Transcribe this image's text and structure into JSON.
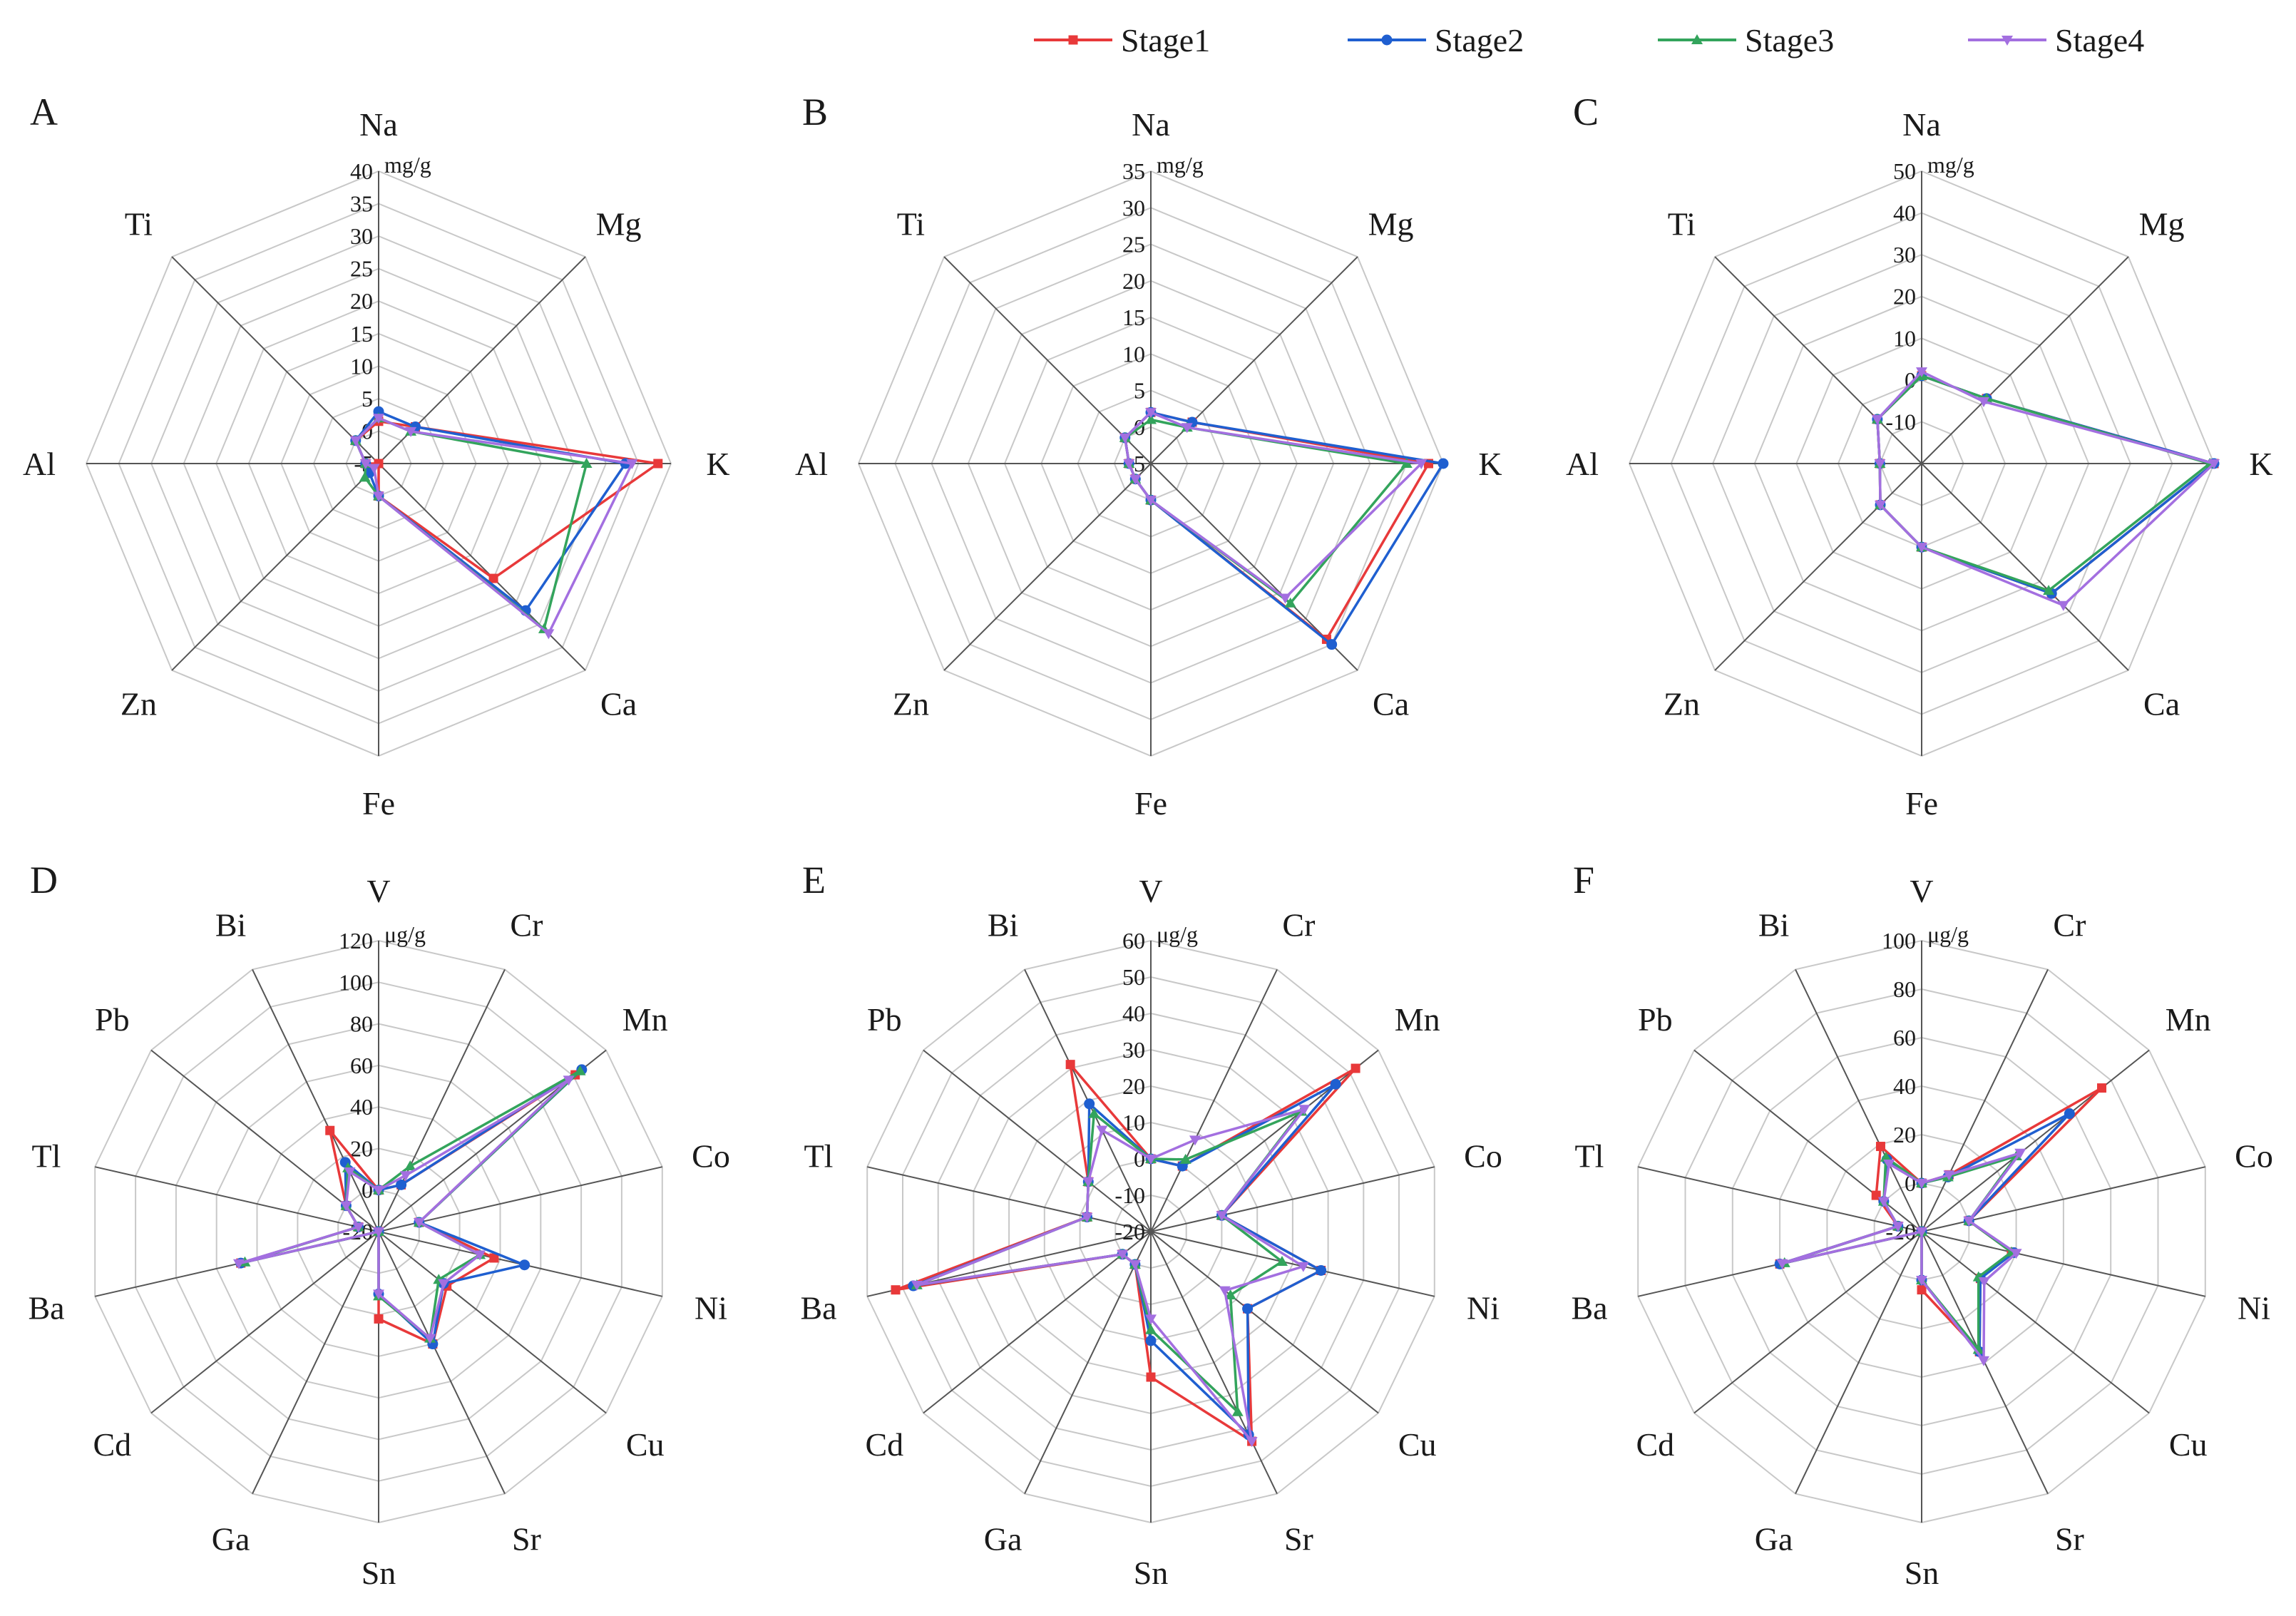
{
  "figure": {
    "legend": [
      {
        "name": "Stage1",
        "color": "#e8393a",
        "marker": "square"
      },
      {
        "name": "Stage2",
        "color": "#1f5fd0",
        "marker": "circle"
      },
      {
        "name": "Stage3",
        "color": "#33a45c",
        "marker": "triangle-up"
      },
      {
        "name": "Stage4",
        "color": "#a36fe0",
        "marker": "triangle-down"
      }
    ]
  },
  "chart_data": [
    {
      "panel": "A",
      "type": "radar",
      "unit": "mg/g",
      "categories": [
        "Na",
        "Mg",
        "K",
        "Ca",
        "Fe",
        "Zn",
        "Al",
        "Ti"
      ],
      "range": [
        -5,
        40
      ],
      "ticks": [
        40,
        35,
        30,
        25,
        20,
        15,
        10,
        5,
        0,
        -5
      ],
      "series": [
        {
          "name": "Stage1",
          "values": [
            1.5,
            3,
            38,
            20,
            0,
            -5,
            -3,
            0
          ]
        },
        {
          "name": "Stage2",
          "values": [
            3,
            3,
            33,
            27,
            0,
            -3,
            -3,
            0
          ]
        },
        {
          "name": "Stage3",
          "values": [
            2,
            2,
            27,
            31,
            0,
            -2,
            -3,
            0
          ]
        },
        {
          "name": "Stage4",
          "values": [
            2,
            2,
            34,
            32,
            0,
            -4,
            -3,
            0
          ]
        }
      ]
    },
    {
      "panel": "B",
      "type": "radar",
      "unit": "mg/g",
      "categories": [
        "Na",
        "Mg",
        "K",
        "Ca",
        "Fe",
        "Zn",
        "Al",
        "Ti"
      ],
      "range": [
        -5,
        35
      ],
      "ticks": [
        35,
        30,
        25,
        20,
        15,
        10,
        5,
        0,
        -5
      ],
      "series": [
        {
          "name": "Stage1",
          "values": [
            2,
            3,
            33,
            29,
            0,
            -2,
            -2,
            0
          ]
        },
        {
          "name": "Stage2",
          "values": [
            2,
            3,
            35,
            30,
            0,
            -2,
            -2,
            0
          ]
        },
        {
          "name": "Stage3",
          "values": [
            1,
            2,
            30,
            22,
            0,
            -2,
            -2,
            0
          ]
        },
        {
          "name": "Stage4",
          "values": [
            2,
            2,
            32,
            21,
            0,
            -2,
            -2,
            0
          ]
        }
      ]
    },
    {
      "panel": "C",
      "type": "radar",
      "unit": "mg/g",
      "categories": [
        "Na",
        "Mg",
        "K",
        "Ca",
        "Fe",
        "Zn",
        "Al",
        "Ti"
      ],
      "range": [
        -20,
        50
      ],
      "ticks": [
        50,
        40,
        30,
        20,
        10,
        0,
        -10
      ],
      "series": [
        {
          "name": "Stage1",
          "values": [
            1,
            2,
            50,
            24,
            0,
            -6,
            -10,
            -5
          ]
        },
        {
          "name": "Stage2",
          "values": [
            1,
            2,
            50,
            24,
            0,
            -6,
            -10,
            -5
          ]
        },
        {
          "name": "Stage3",
          "values": [
            1,
            2,
            49,
            23,
            0,
            -6,
            -10,
            -5
          ]
        },
        {
          "name": "Stage4",
          "values": [
            2,
            1,
            50,
            28,
            0,
            -6,
            -10,
            -5
          ]
        }
      ]
    },
    {
      "panel": "D",
      "type": "radar",
      "unit": "μg/g",
      "categories": [
        "V",
        "Cr",
        "Mn",
        "Co",
        "Ni",
        "Cu",
        "Sr",
        "Sn",
        "Ga",
        "Cd",
        "Ba",
        "Tl",
        "Pb",
        "Bi"
      ],
      "range": [
        -20,
        120
      ],
      "ticks": [
        120,
        100,
        80,
        60,
        40,
        20,
        0,
        -20
      ],
      "series": [
        {
          "name": "Stage1",
          "values": [
            0,
            5,
            101,
            0,
            37,
            22,
            40,
            22,
            -20,
            -20,
            48,
            -10,
            0,
            34
          ]
        },
        {
          "name": "Stage2",
          "values": [
            0,
            5,
            105,
            0,
            52,
            20,
            40,
            10,
            -20,
            -20,
            48,
            -10,
            0,
            17
          ]
        },
        {
          "name": "Stage3",
          "values": [
            0,
            15,
            104,
            0,
            30,
            17,
            37,
            11,
            -20,
            -20,
            46,
            -10,
            0,
            14
          ]
        },
        {
          "name": "Stage4",
          "values": [
            0,
            10,
            97,
            0,
            30,
            20,
            37,
            10,
            -20,
            -20,
            49,
            -10,
            0,
            12
          ]
        }
      ]
    },
    {
      "panel": "E",
      "type": "radar",
      "unit": "μg/g",
      "categories": [
        "V",
        "Cr",
        "Mn",
        "Co",
        "Ni",
        "Cu",
        "Sr",
        "Sn",
        "Ga",
        "Cd",
        "Ba",
        "Tl",
        "Pb",
        "Bi"
      ],
      "range": [
        -20,
        60
      ],
      "ticks": [
        60,
        50,
        40,
        30,
        20,
        10,
        0,
        -10,
        -20
      ],
      "series": [
        {
          "name": "Stage1",
          "values": [
            0,
            0,
            52,
            0,
            28,
            14,
            44,
            20,
            -10,
            -10,
            52,
            -2,
            2,
            31
          ]
        },
        {
          "name": "Stage2",
          "values": [
            0,
            0,
            45,
            0,
            28,
            14,
            42,
            10,
            -10,
            -10,
            47,
            -2,
            2,
            19
          ]
        },
        {
          "name": "Stage3",
          "values": [
            0,
            2,
            33,
            0,
            17,
            8,
            35,
            7,
            -10,
            -10,
            46,
            -2,
            2,
            16
          ]
        },
        {
          "name": "Stage4",
          "values": [
            0,
            8,
            34,
            0,
            23,
            6,
            44,
            4,
            -10,
            -10,
            46,
            -2,
            2,
            11
          ]
        }
      ]
    },
    {
      "panel": "F",
      "type": "radar",
      "unit": "μg/g",
      "categories": [
        "V",
        "Cr",
        "Mn",
        "Co",
        "Ni",
        "Cu",
        "Sr",
        "Sn",
        "Ga",
        "Cd",
        "Ba",
        "Tl",
        "Pb",
        "Bi"
      ],
      "range": [
        -20,
        100
      ],
      "ticks": [
        100,
        80,
        60,
        40,
        20,
        0,
        -20
      ],
      "series": [
        {
          "name": "Stage1",
          "values": [
            0,
            6,
            75,
            0,
            18,
            11,
            35,
            4,
            -20,
            -20,
            40,
            -10,
            4,
            19
          ]
        },
        {
          "name": "Stage2",
          "values": [
            0,
            5,
            58,
            0,
            19,
            11,
            35,
            0,
            -20,
            -20,
            40,
            -10,
            0,
            13
          ]
        },
        {
          "name": "Stage3",
          "values": [
            0,
            5,
            30,
            0,
            18,
            10,
            34,
            0,
            -20,
            -20,
            38,
            -10,
            0,
            14
          ]
        },
        {
          "name": "Stage4",
          "values": [
            0,
            6,
            32,
            0,
            20,
            13,
            39,
            0,
            -20,
            -20,
            39,
            -10,
            0,
            11
          ]
        }
      ]
    }
  ]
}
